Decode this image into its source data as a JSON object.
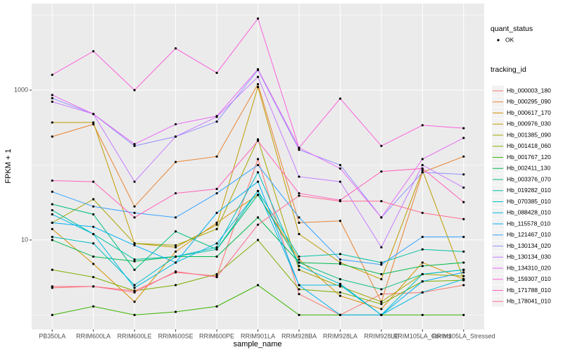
{
  "chart_data": {
    "type": "line",
    "x_label": "sample_name",
    "y_label": "FPKM + 1",
    "log_y": true,
    "grid": true,
    "point_color": "#000000",
    "legend": {
      "position": "right",
      "shape_title": "quant_status",
      "shape_entries": [
        "OK"
      ],
      "color_title": "tracking_id"
    },
    "categories": [
      "PB350LA",
      "RRIM600LA",
      "RRIM600LE",
      "RRIM600SE",
      "RRIM600PE",
      "RRIM901LA",
      "RRIM928BA",
      "RRIM928LA",
      "RRIM928LE",
      "RRIM105LA_Control",
      "RRIM105LA_Stressed"
    ],
    "ylim": [
      0.64,
      14300
    ],
    "yticks": [
      10,
      1000
    ],
    "series": [
      {
        "name": "Hb_000003_180",
        "color": "#F8766D",
        "values": [
          2.3,
          2.4,
          2.1,
          3.7,
          3.3,
          120,
          1.9,
          1.0,
          1.9,
          2.0,
          2.5
        ]
      },
      {
        "name": "Hb_000295_090",
        "color": "#EA8331",
        "values": [
          240,
          350,
          28,
          110,
          130,
          1200,
          17,
          18,
          1.5,
          80,
          130
        ]
      },
      {
        "name": "Hb_000617_170",
        "color": "#D89000",
        "values": [
          14,
          4.8,
          1.5,
          7,
          17,
          40,
          5.5,
          1.8,
          1.2,
          5,
          3
        ]
      },
      {
        "name": "Hb_000976_030",
        "color": "#C09B00",
        "values": [
          370,
          370,
          9,
          8,
          16,
          1100,
          12,
          5,
          3,
          85,
          3
        ]
      },
      {
        "name": "Hb_001385_090",
        "color": "#A3A500",
        "values": [
          17,
          35,
          9,
          8.5,
          14,
          220,
          4,
          2.4,
          1.5,
          3.5,
          3.3
        ]
      },
      {
        "name": "Hb_001418_060",
        "color": "#7CAE00",
        "values": [
          4,
          3.2,
          2.1,
          2.5,
          3.5,
          10,
          2.2,
          2,
          1.4,
          2.8,
          2.9
        ]
      },
      {
        "name": "Hb_001767_120",
        "color": "#39B600",
        "values": [
          1.0,
          1.3,
          1.0,
          1.1,
          1.3,
          2.5,
          1.0,
          1.0,
          1.0,
          1.0,
          1.0
        ]
      },
      {
        "name": "Hb_002411_130",
        "color": "#00BB4E",
        "values": [
          10,
          6,
          5.2,
          6,
          6,
          20,
          5,
          4.8,
          3.5,
          4.5,
          5
        ]
      },
      {
        "name": "Hb_003376_070",
        "color": "#00BF7D",
        "values": [
          30,
          22,
          4,
          13,
          7.5,
          40,
          5,
          3,
          2.2,
          3.5,
          4
        ]
      },
      {
        "name": "Hb_019282_010",
        "color": "#00C1A3",
        "values": [
          25,
          12,
          5.5,
          6,
          7.5,
          45,
          6,
          6.5,
          5,
          7.5,
          7
        ]
      },
      {
        "name": "Hb_070385_010",
        "color": "#00BFC4",
        "values": [
          11,
          9,
          2.5,
          6,
          8,
          80,
          4.5,
          2.6,
          1,
          3.5,
          4
        ]
      },
      {
        "name": "Hb_088428_010",
        "color": "#00BAE0",
        "values": [
          22,
          12,
          2.3,
          5,
          9,
          45,
          2.5,
          2.5,
          1,
          2,
          3
        ]
      },
      {
        "name": "Hb_115578_010",
        "color": "#00B0F6",
        "values": [
          17,
          15,
          8.5,
          5,
          23,
          60,
          2.5,
          1,
          1,
          2.8,
          3.7
        ]
      },
      {
        "name": "Hb_121467_010",
        "color": "#35A2FF",
        "values": [
          44,
          28,
          23,
          20,
          42,
          100,
          20,
          5.5,
          4.7,
          11,
          11
        ]
      },
      {
        "name": "Hb_130134_020",
        "color": "#9590FF",
        "values": [
          780,
          480,
          180,
          240,
          380,
          1850,
          160,
          100,
          20,
          80,
          75
        ]
      },
      {
        "name": "Hb_130134_030",
        "color": "#C77CFF",
        "values": [
          700,
          480,
          60,
          240,
          440,
          1500,
          70,
          60,
          8,
          100,
          50
        ]
      },
      {
        "name": "Hb_134310_020",
        "color": "#E76BF3",
        "values": [
          860,
          480,
          190,
          350,
          450,
          1900,
          170,
          90,
          20,
          120,
          230
        ]
      },
      {
        "name": "Hb_159307_010",
        "color": "#FA62DB",
        "values": [
          1600,
          3300,
          1000,
          3600,
          1700,
          9000,
          170,
          770,
          180,
          340,
          310
        ]
      },
      {
        "name": "Hb_171788_010",
        "color": "#FF62BC",
        "values": [
          62,
          60,
          20,
          42,
          48,
          210,
          42,
          34,
          82,
          90,
          32
        ]
      },
      {
        "name": "Hb_178041_010",
        "color": "#FF6C91",
        "values": [
          2.4,
          2.4,
          2.0,
          3.8,
          3.2,
          16,
          39,
          33,
          33,
          23,
          19
        ]
      }
    ]
  }
}
